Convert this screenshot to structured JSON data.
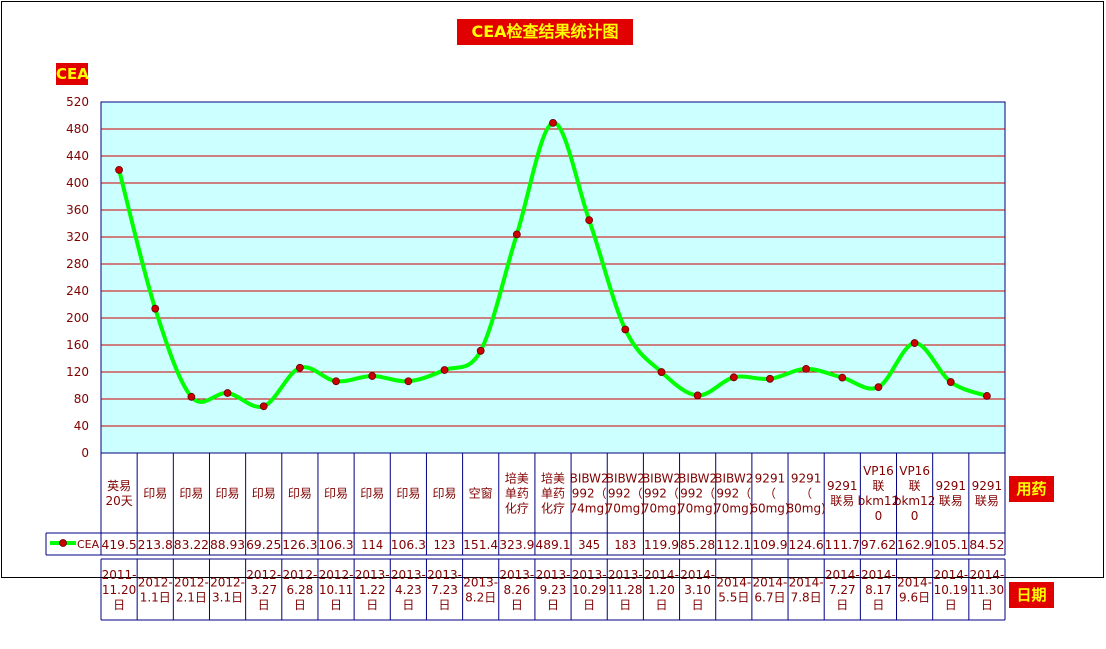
{
  "chart_data": {
    "type": "line",
    "title": "CEA检查结果统计图",
    "ylabel": "CEA",
    "row_label_drug": "用药",
    "row_label_date": "日期",
    "legend": "CEA",
    "ylim": [
      0,
      520
    ],
    "yticks": [
      0,
      40,
      80,
      120,
      160,
      200,
      240,
      280,
      320,
      360,
      400,
      440,
      480,
      520
    ],
    "grid": true,
    "colors": {
      "plot_bg": "#ccffff",
      "line": "#00ff00",
      "marker": "#cc0000",
      "grid": "#cc0000",
      "axis_text": "#800000",
      "tag_bg": "#e00000",
      "tag_text": "#ffff00"
    },
    "series": [
      {
        "name": "CEA",
        "values": [
          419.5,
          213.8,
          83.22,
          88.93,
          69.25,
          126.3,
          106.3,
          114,
          106.3,
          123,
          151.4,
          323.9,
          489.1,
          345,
          183,
          119.9,
          85.28,
          112.1,
          109.9,
          124.6,
          111.7,
          97.62,
          162.9,
          105.1,
          84.52
        ],
        "labels": [
          "419.5",
          "213.8",
          "83.22",
          "88.93",
          "69.25",
          "126.3",
          "106.3",
          "114",
          "106.3",
          "123",
          "151.4",
          "323.9",
          "489.1",
          "345",
          "183",
          "119.9",
          "85.28",
          "112.1",
          "109.9",
          "124.6",
          "111.7",
          "97.62",
          "162.9",
          "105.1",
          "84.52"
        ]
      }
    ],
    "drugs": [
      [
        "英易",
        "20天"
      ],
      [
        "印易"
      ],
      [
        "印易"
      ],
      [
        "印易"
      ],
      [
        "印易"
      ],
      [
        "印易"
      ],
      [
        "印易"
      ],
      [
        "印易"
      ],
      [
        "印易"
      ],
      [
        "印易"
      ],
      [
        "空窗"
      ],
      [
        "培美",
        "单药",
        "化疗"
      ],
      [
        "培美",
        "单药",
        "化疗"
      ],
      [
        "BIBW2",
        "992（",
        "74mg)"
      ],
      [
        "BIBW2",
        "992（",
        "70mg)"
      ],
      [
        "BIBW2",
        "992（",
        "70mg)"
      ],
      [
        "BIBW2",
        "992（",
        "70mg)"
      ],
      [
        "BIBW2",
        "992（",
        "70mg)"
      ],
      [
        "9291",
        "（",
        "60mg)"
      ],
      [
        "9291",
        "（",
        "80mg)"
      ],
      [
        "9291",
        "联易"
      ],
      [
        "VP16",
        "联",
        "bkm12",
        "0"
      ],
      [
        "VP16",
        "联",
        "bkm12",
        "0"
      ],
      [
        "9291",
        "联易"
      ],
      [
        "9291",
        "联易"
      ]
    ],
    "dates": [
      [
        "2011-",
        "11.20",
        "日"
      ],
      [
        "2012-",
        "1.1日"
      ],
      [
        "2012-",
        "2.1日"
      ],
      [
        "2012-",
        "3.1日"
      ],
      [
        "2012-",
        "3.27",
        "日"
      ],
      [
        "2012-",
        "6.28",
        "日"
      ],
      [
        "2012-",
        "10.11",
        "日"
      ],
      [
        "2013-",
        "1.22",
        "日"
      ],
      [
        "2013-",
        "4.23",
        "日"
      ],
      [
        "2013-",
        "7.23",
        "日"
      ],
      [
        "2013-",
        "8.2日"
      ],
      [
        "2013-",
        "8.26",
        "日"
      ],
      [
        "2013-",
        "9.23",
        "日"
      ],
      [
        "2013-",
        "10.29",
        "日"
      ],
      [
        "2013-",
        "11.28",
        "日"
      ],
      [
        "2014-",
        "1.20",
        "日"
      ],
      [
        "2014-",
        "3.10",
        "日"
      ],
      [
        "2014-",
        "5.5日"
      ],
      [
        "2014-",
        "6.7日"
      ],
      [
        "2014-",
        "7.8日"
      ],
      [
        "2014-",
        "7.27",
        "日"
      ],
      [
        "2014-",
        "8.17",
        "日"
      ],
      [
        "2014-",
        "9.6日"
      ],
      [
        "2014-",
        "10.19",
        "日"
      ],
      [
        "2014-",
        "11.30",
        "日"
      ]
    ]
  }
}
